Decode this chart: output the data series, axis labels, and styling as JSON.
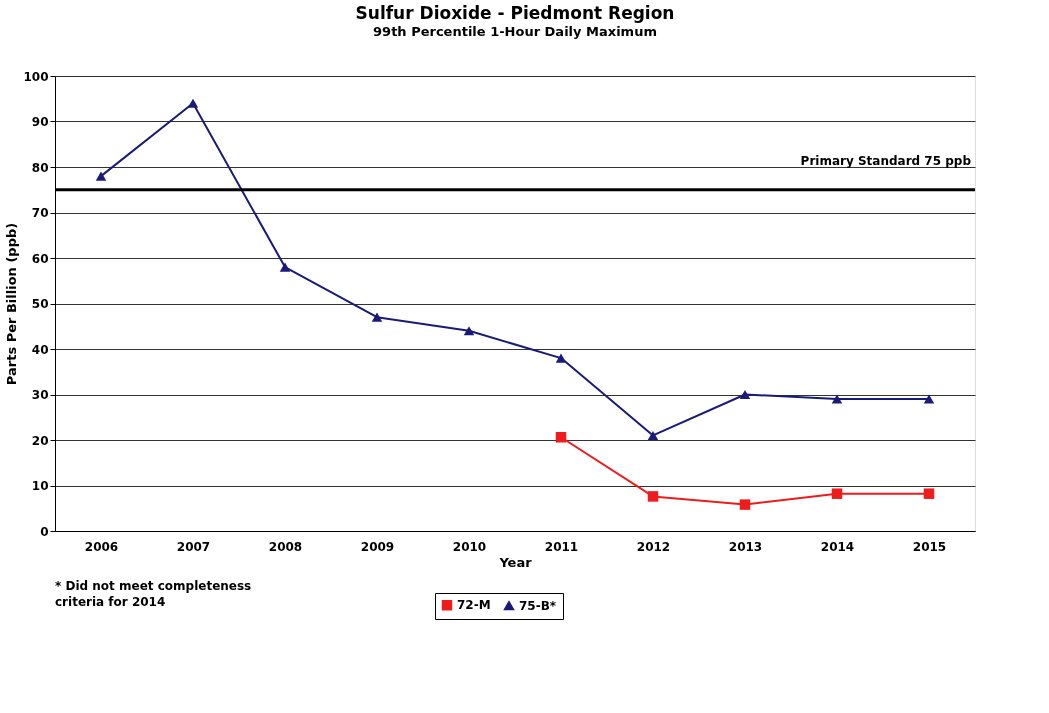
{
  "chart_data": {
    "type": "line",
    "title": "Sulfur Dioxide - Piedmont Region",
    "subtitle": "99th Percentile 1-Hour Daily Maximum",
    "xlabel": "Year",
    "ylabel": "Parts Per Billion (ppb)",
    "categories": [
      "2006",
      "2007",
      "2008",
      "2009",
      "2010",
      "2011",
      "2012",
      "2013",
      "2014",
      "2015"
    ],
    "series": [
      {
        "name": "72-M",
        "color": "#ee1c1c",
        "marker": "square",
        "values": [
          null,
          null,
          null,
          null,
          null,
          20.6,
          7.6,
          5.8,
          8.2,
          8.2
        ]
      },
      {
        "name": "75-B*",
        "color": "#1a1a78",
        "marker": "triangle",
        "values": [
          78,
          94,
          58,
          47,
          44,
          38,
          21,
          30,
          29,
          29
        ]
      }
    ],
    "ylim": [
      0,
      100
    ],
    "yticks": [
      0,
      10,
      20,
      30,
      40,
      50,
      60,
      70,
      80,
      90,
      100
    ],
    "grid": "y",
    "legend": "bottom",
    "ref_lines": [
      {
        "axis": "y",
        "value": 75,
        "label": "Primary Standard 75 ppb",
        "color": "#000000"
      }
    ],
    "annotations": [
      "* Did not meet completeness\ncriteria for 2014"
    ]
  }
}
